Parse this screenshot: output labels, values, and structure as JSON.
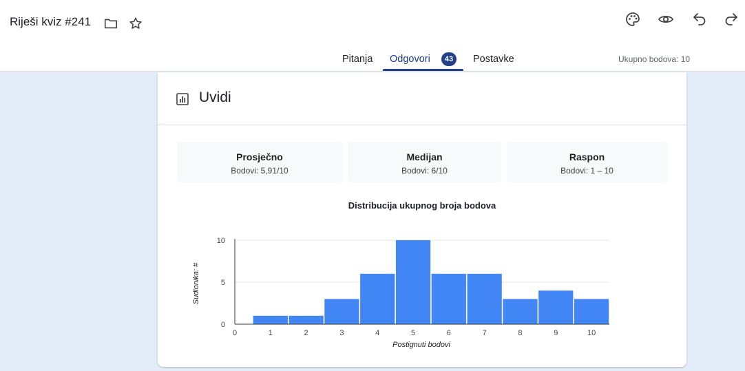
{
  "header": {
    "doc_title": "Riješi kviz #241",
    "icons": [
      "folder-icon",
      "star-icon",
      "palette-icon",
      "eye-icon",
      "undo-icon",
      "redo-icon"
    ]
  },
  "tabs": {
    "pitanja": "Pitanja",
    "odgovori": "Odgovori",
    "odgovori_badge": "43",
    "postavke": "Postavke",
    "active": "Odgovori"
  },
  "total_points": "Ukupno bodova: 10",
  "insights": {
    "title": "Uvidi",
    "stats": {
      "prosjecno": {
        "label": "Prosječno",
        "value": "Bodovi: 5,91/10"
      },
      "medijan": {
        "label": "Medijan",
        "value": "Bodovi: 6/10"
      },
      "raspon": {
        "label": "Raspon",
        "value": "Bodovi: 1 – 10"
      }
    }
  },
  "colors": {
    "accent": "#23418a",
    "bar": "#4285f4",
    "page_bg": "#e4ebf9"
  },
  "chart_data": {
    "type": "bar",
    "title": "Distribucija ukupnog broja bodova",
    "xlabel": "Postignuti bodovi",
    "ylabel": "Sudionika: #",
    "categories": [
      1,
      2,
      3,
      4,
      5,
      6,
      7,
      8,
      9,
      10
    ],
    "values": [
      1,
      1,
      3,
      6,
      10,
      6,
      6,
      3,
      4,
      3
    ],
    "x_ticks": [
      "0",
      "1",
      "2",
      "3",
      "4",
      "5",
      "6",
      "7",
      "8",
      "9",
      "10"
    ],
    "y_ticks": [
      "0",
      "5",
      "10"
    ],
    "xlim": [
      0,
      10.5
    ],
    "ylim": [
      0,
      10
    ],
    "grid": true
  }
}
